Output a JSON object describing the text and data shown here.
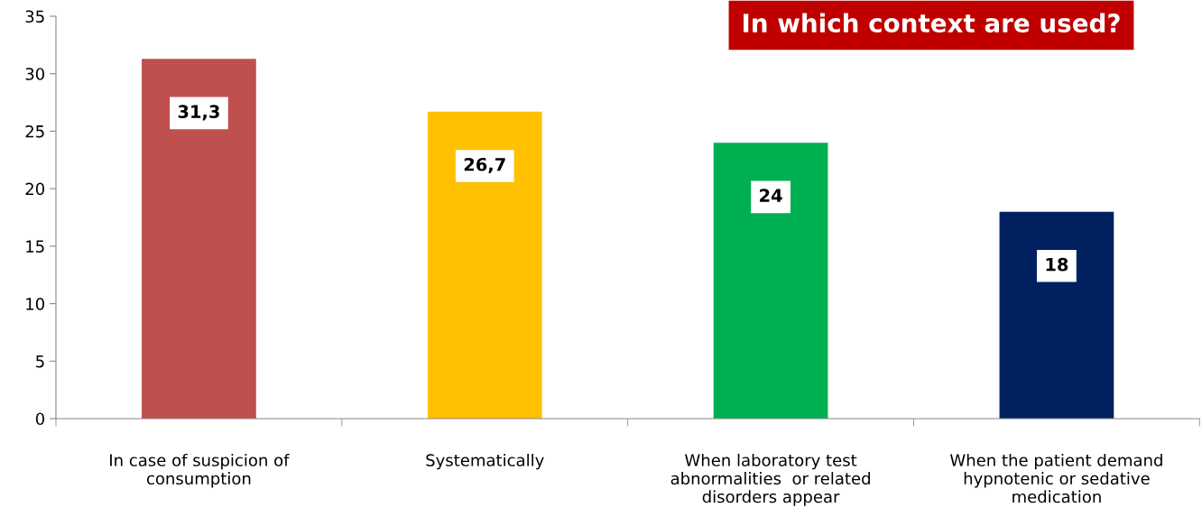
{
  "chart_data": {
    "type": "bar",
    "title": "In which context are used?",
    "categories": [
      "In case of suspicion of\nconsumption",
      "Systematically",
      "When laboratory test\nabnormalities  or related\ndisorders appear",
      "When the patient demand\nhypnotenic or sedative\nmedication"
    ],
    "values": [
      31.3,
      26.7,
      24,
      18
    ],
    "colors": [
      "#c0504d",
      "#ffc000",
      "#00b050",
      "#002060"
    ],
    "value_labels": [
      "31,3",
      "26,7",
      "24",
      "18"
    ],
    "ylim": [
      0,
      35
    ],
    "yticks": [
      0,
      5,
      10,
      15,
      20,
      25,
      30,
      35
    ],
    "grid": false,
    "legend": false
  }
}
